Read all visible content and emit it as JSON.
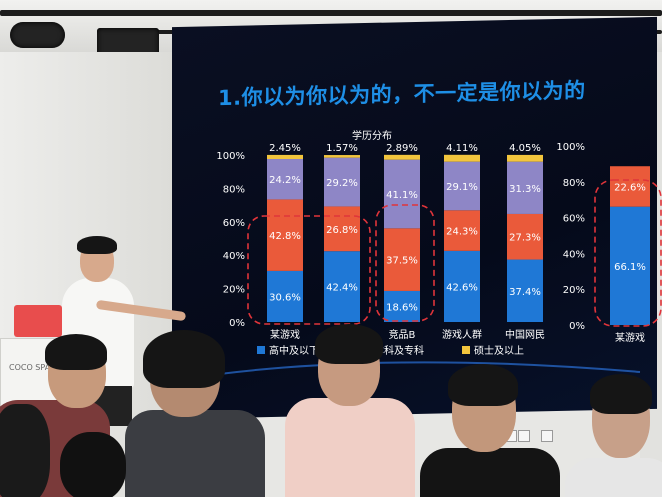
{
  "slide": {
    "title": "1.你以为你以为的，不一定是你以为的",
    "chart_title": "学历分布"
  },
  "logo_text": "COCO SPACE",
  "chart_data": [
    {
      "type": "bar",
      "stacked": true,
      "title": "学历分布",
      "categories": [
        "某游戏",
        "",
        "竞品B",
        "游戏人群",
        "中国网民"
      ],
      "ylim": [
        0,
        100
      ],
      "yticks": [
        "0%",
        "20%",
        "40%",
        "60%",
        "80%",
        "100%"
      ],
      "series": [
        {
          "name": "高中及以下",
          "color": "#1f78d6",
          "values": [
            30.6,
            42.4,
            18.6,
            42.6,
            37.4
          ],
          "labels": [
            "30.6%",
            "42.4%",
            "18.6%",
            "42.6%",
            "37.4%"
          ]
        },
        {
          "name": "",
          "color": "#ea5a3a",
          "values": [
            42.8,
            26.8,
            37.5,
            24.3,
            27.3
          ],
          "labels": [
            "42.8%",
            "26.8%",
            "37.5%",
            "24.3%",
            "27.3%"
          ]
        },
        {
          "name": "本科及专科",
          "color": "#8e86c6",
          "values": [
            24.2,
            29.2,
            41.1,
            29.1,
            31.3
          ],
          "labels": [
            "24.2%",
            "29.2%",
            "41.1%",
            "29.1%",
            "31.3%"
          ]
        },
        {
          "name": "硕士及以上",
          "color": "#f2c53d",
          "values": [
            2.45,
            1.57,
            2.89,
            4.11,
            4.05
          ],
          "labels": [
            "2.45%",
            "1.57%",
            "2.89%",
            "4.11%",
            "4.05%"
          ]
        }
      ],
      "legend_position": "bottom",
      "highlight_groups": "dashed-red-rounded"
    },
    {
      "type": "bar",
      "stacked": true,
      "categories": [
        "某游戏"
      ],
      "ylim": [
        0,
        100
      ],
      "yticks": [
        "0%",
        "20%",
        "40%",
        "60%",
        "80%",
        "100%"
      ],
      "series": [
        {
          "color": "#1f78d6",
          "values": [
            66.1
          ],
          "labels": [
            "66.1%"
          ]
        },
        {
          "color": "#ea5a3a",
          "values": [
            22.6
          ],
          "labels": [
            "22.6%"
          ]
        }
      ]
    }
  ]
}
